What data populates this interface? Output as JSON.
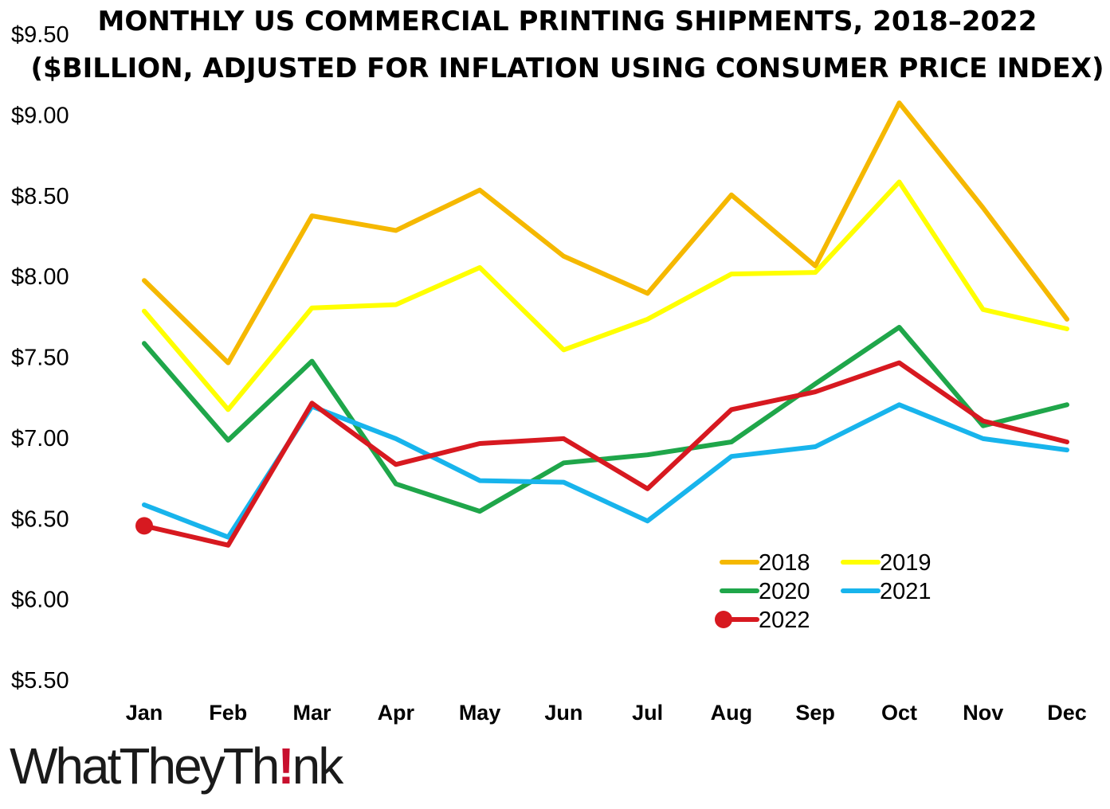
{
  "chart_data": {
    "type": "line",
    "title_line1": "MONTHLY US COMMERCIAL PRINTING SHIPMENTS, 2018–2022",
    "title_line2": "($BILLION, ADJUSTED FOR INFLATION USING CONSUMER PRICE INDEX)",
    "xlabel": "",
    "ylabel": "",
    "ylim": [
      5.5,
      9.5
    ],
    "y_ticks": [
      "$9.50",
      "$9.00",
      "$8.50",
      "$8.00",
      "$7.50",
      "$7.00",
      "$6.50",
      "$6.00",
      "$5.50"
    ],
    "y_tick_values": [
      9.5,
      9.0,
      8.5,
      8.0,
      7.5,
      7.0,
      6.5,
      6.0,
      5.5
    ],
    "categories": [
      "Jan",
      "Feb",
      "Mar",
      "Apr",
      "May",
      "Jun",
      "Jul",
      "Aug",
      "Sep",
      "Oct",
      "Nov",
      "Dec"
    ],
    "grid": false,
    "legend_position": "lower-right",
    "series": [
      {
        "name": "2018",
        "color": "#F5B800",
        "values": [
          7.97,
          7.46,
          8.37,
          8.28,
          8.53,
          8.12,
          7.89,
          8.5,
          8.06,
          9.07,
          8.42,
          7.73
        ]
      },
      {
        "name": "2019",
        "color": "#FFFF00",
        "values": [
          7.78,
          7.17,
          7.8,
          7.82,
          8.05,
          7.54,
          7.73,
          8.01,
          8.02,
          8.58,
          7.79,
          7.67
        ]
      },
      {
        "name": "2020",
        "color": "#1FA64A",
        "values": [
          7.58,
          6.98,
          7.47,
          6.71,
          6.54,
          6.84,
          6.89,
          6.97,
          7.33,
          7.68,
          7.07,
          7.2
        ]
      },
      {
        "name": "2021",
        "color": "#18B4EC",
        "values": [
          6.58,
          6.38,
          7.19,
          6.99,
          6.73,
          6.72,
          6.48,
          6.88,
          6.94,
          7.2,
          6.99,
          6.92
        ]
      },
      {
        "name": "2022",
        "color": "#D71920",
        "values": [
          6.45,
          6.33,
          7.21,
          6.83,
          6.96,
          6.99,
          6.68,
          7.17,
          7.28,
          7.46,
          7.1,
          6.97
        ],
        "start_marker": true
      }
    ]
  },
  "branding": {
    "logo_part1": "WhatTheyTh",
    "logo_bang": "!",
    "logo_part2": "nk"
  }
}
